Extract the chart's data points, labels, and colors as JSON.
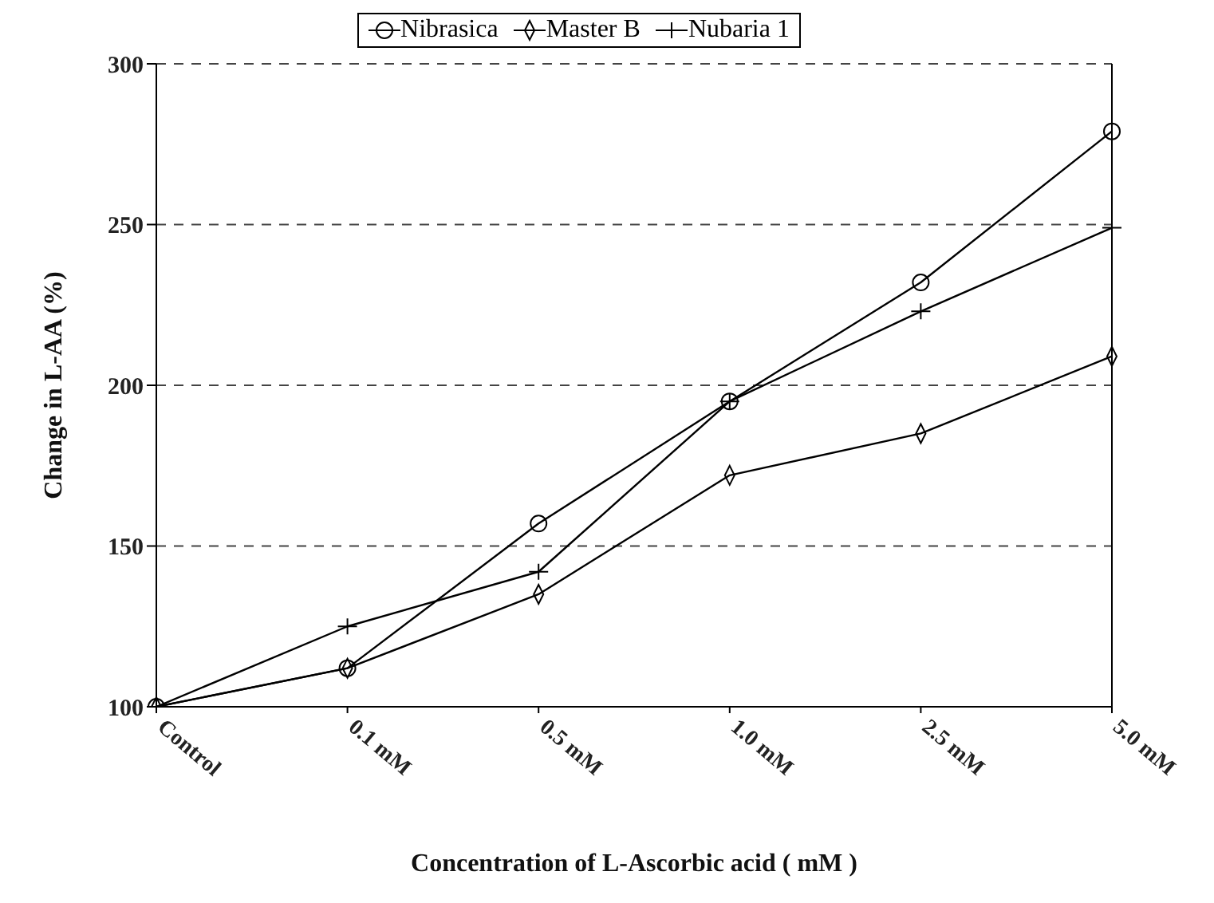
{
  "chart_data": {
    "type": "line",
    "xlabel": "Concentration of L-Ascorbic acid ( mM )",
    "ylabel": "Change in L-AA (%)",
    "categories": [
      "Control",
      "0.1 mM",
      "0.5 mM",
      "1.0 mM",
      "2.5 mM",
      "5.0 mM"
    ],
    "series": [
      {
        "name": "Nibrasica",
        "color": "#000000",
        "marker": "circle",
        "values": [
          100,
          112,
          157,
          195,
          232,
          279
        ]
      },
      {
        "name": "Master B",
        "color": "#000000",
        "marker": "diamond",
        "values": [
          100,
          112,
          135,
          172,
          185,
          209
        ]
      },
      {
        "name": "Nubaria 1",
        "color": "#000000",
        "marker": "cross",
        "values": [
          100,
          125,
          142,
          195,
          223,
          249
        ]
      }
    ],
    "ylim": [
      100,
      300
    ],
    "yticks": [
      100,
      150,
      200,
      250,
      300
    ],
    "grid": "y",
    "legend": "top",
    "line_style": "solid"
  }
}
